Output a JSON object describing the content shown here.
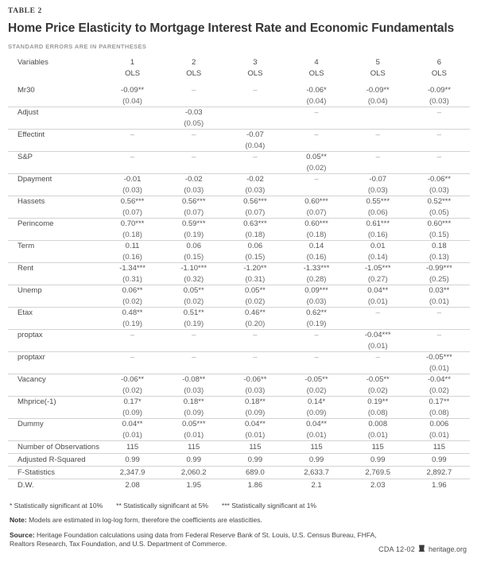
{
  "header": {
    "table_label": "TABLE 2",
    "title": "Home Price Elasticity to Mortgage Interest Rate and Economic Fundamentals",
    "subtitle": "STANDARD ERRORS ARE IN PARENTHESES"
  },
  "table": {
    "variables_header": "Variables",
    "columns": [
      {
        "number": "1",
        "method": "OLS"
      },
      {
        "number": "2",
        "method": "OLS"
      },
      {
        "number": "3",
        "method": "OLS"
      },
      {
        "number": "4",
        "method": "OLS"
      },
      {
        "number": "5",
        "method": "OLS"
      },
      {
        "number": "6",
        "method": "OLS"
      }
    ],
    "rows": [
      {
        "label": "Mr30",
        "cells": [
          {
            "v": "-0.09**",
            "se": "(0.04)"
          },
          {
            "v": "–",
            "se": ""
          },
          {
            "v": "–",
            "se": ""
          },
          {
            "v": "-0.06*",
            "se": "(0.04)"
          },
          {
            "v": "-0.09**",
            "se": "(0.04)"
          },
          {
            "v": "-0.09**",
            "se": "(0.03)"
          }
        ]
      },
      {
        "label": "Adjust",
        "cells": [
          {
            "v": "",
            "se": ""
          },
          {
            "v": "-0.03",
            "se": "(0.05)"
          },
          {
            "v": "",
            "se": ""
          },
          {
            "v": "–",
            "se": ""
          },
          {
            "v": "",
            "se": ""
          },
          {
            "v": "–",
            "se": ""
          }
        ]
      },
      {
        "label": "Effectint",
        "cells": [
          {
            "v": "–",
            "se": ""
          },
          {
            "v": "–",
            "se": ""
          },
          {
            "v": "-0.07",
            "se": "(0.04)"
          },
          {
            "v": "–",
            "se": ""
          },
          {
            "v": "–",
            "se": ""
          },
          {
            "v": "–",
            "se": ""
          }
        ]
      },
      {
        "label": "S&P",
        "cells": [
          {
            "v": "–",
            "se": ""
          },
          {
            "v": "–",
            "se": ""
          },
          {
            "v": "–",
            "se": ""
          },
          {
            "v": "0.05**",
            "se": "(0.02)"
          },
          {
            "v": "–",
            "se": ""
          },
          {
            "v": "–",
            "se": ""
          }
        ]
      },
      {
        "label": "Dpayment",
        "cells": [
          {
            "v": "-0.01",
            "se": "(0.03)"
          },
          {
            "v": "-0.02",
            "se": "(0.03)"
          },
          {
            "v": "-0.02",
            "se": "(0.03)"
          },
          {
            "v": "–",
            "se": ""
          },
          {
            "v": "-0.07",
            "se": "(0.03)"
          },
          {
            "v": "-0.06**",
            "se": "(0.03)"
          }
        ]
      },
      {
        "label": "Hassets",
        "cells": [
          {
            "v": "0.56***",
            "se": "(0.07)"
          },
          {
            "v": "0.56***",
            "se": "(0.07)"
          },
          {
            "v": "0.56***",
            "se": "(0.07)"
          },
          {
            "v": "0.60***",
            "se": "(0.07)"
          },
          {
            "v": "0.55***",
            "se": "(0.06)"
          },
          {
            "v": "0.52***",
            "se": "(0.05)"
          }
        ]
      },
      {
        "label": "Perincome",
        "cells": [
          {
            "v": "0.70***",
            "se": "(0.18)"
          },
          {
            "v": "0.59***",
            "se": "(0.19)"
          },
          {
            "v": "0.63***",
            "se": "(0.18)"
          },
          {
            "v": "0.60***",
            "se": "(0.18)"
          },
          {
            "v": "0.61***",
            "se": "(0.16)"
          },
          {
            "v": "0.60***",
            "se": "(0.15)"
          }
        ]
      },
      {
        "label": "Term",
        "cells": [
          {
            "v": "0.11",
            "se": "(0.16)"
          },
          {
            "v": "0.06",
            "se": "(0.15)"
          },
          {
            "v": "0.06",
            "se": "(0.15)"
          },
          {
            "v": "0.14",
            "se": "(0.16)"
          },
          {
            "v": "0.01",
            "se": "(0.14)"
          },
          {
            "v": "0.18",
            "se": "(0.13)"
          }
        ]
      },
      {
        "label": "Rent",
        "cells": [
          {
            "v": "-1.34***",
            "se": "(0.31)"
          },
          {
            "v": "-1.10***",
            "se": "(0.32)"
          },
          {
            "v": "-1.20**",
            "se": "(0.31)"
          },
          {
            "v": "-1.33***",
            "se": "(0.28)"
          },
          {
            "v": "-1.05***",
            "se": "(0.27)"
          },
          {
            "v": "-0.99***",
            "se": "(0.25)"
          }
        ]
      },
      {
        "label": "Unemp",
        "cells": [
          {
            "v": "0.06**",
            "se": "(0.02)"
          },
          {
            "v": "0.05**",
            "se": "(0.02)"
          },
          {
            "v": "0.05**",
            "se": "(0.02)"
          },
          {
            "v": "0.09***",
            "se": "(0.03)"
          },
          {
            "v": "0.04**",
            "se": "(0.01)"
          },
          {
            "v": "0.03**",
            "se": "(0.01)"
          }
        ]
      },
      {
        "label": "Etax",
        "cells": [
          {
            "v": "0.48**",
            "se": "(0.19)"
          },
          {
            "v": "0.51**",
            "se": "(0.19)"
          },
          {
            "v": "0.46**",
            "se": "(0.20)"
          },
          {
            "v": "0.62**",
            "se": "(0.19)"
          },
          {
            "v": "–",
            "se": ""
          },
          {
            "v": "–",
            "se": ""
          }
        ]
      },
      {
        "label": "proptax",
        "cells": [
          {
            "v": "–",
            "se": ""
          },
          {
            "v": "–",
            "se": ""
          },
          {
            "v": "–",
            "se": ""
          },
          {
            "v": "–",
            "se": ""
          },
          {
            "v": "-0.04***",
            "se": "(0.01)"
          },
          {
            "v": "–",
            "se": ""
          }
        ]
      },
      {
        "label": "proptaxr",
        "cells": [
          {
            "v": "–",
            "se": ""
          },
          {
            "v": "–",
            "se": ""
          },
          {
            "v": "–",
            "se": ""
          },
          {
            "v": "–",
            "se": ""
          },
          {
            "v": "–",
            "se": ""
          },
          {
            "v": "-0.05***",
            "se": "(0.01)"
          }
        ]
      },
      {
        "label": "Vacancy",
        "cells": [
          {
            "v": "-0.06**",
            "se": "(0.02)"
          },
          {
            "v": "-0.08**",
            "se": "(0.03)"
          },
          {
            "v": "-0.06**",
            "se": "(0.03)"
          },
          {
            "v": "-0.05**",
            "se": "(0.02)"
          },
          {
            "v": "-0.05**",
            "se": "(0.02)"
          },
          {
            "v": "-0.04**",
            "se": "(0.02)"
          }
        ]
      },
      {
        "label": "Mhprice(-1)",
        "cells": [
          {
            "v": "0.17*",
            "se": "(0.09)"
          },
          {
            "v": "0.18**",
            "se": "(0.09)"
          },
          {
            "v": "0.18**",
            "se": "(0.09)"
          },
          {
            "v": "0.14*",
            "se": "(0.09)"
          },
          {
            "v": "0.19**",
            "se": "(0.08)"
          },
          {
            "v": "0.17**",
            "se": "(0.08)"
          }
        ]
      },
      {
        "label": "Dummy",
        "cells": [
          {
            "v": "0.04**",
            "se": "(0.01)"
          },
          {
            "v": "0.05***",
            "se": "(0.01)"
          },
          {
            "v": "0.04**",
            "se": "(0.01)"
          },
          {
            "v": "0.04**",
            "se": "(0.01)"
          },
          {
            "v": "0.008",
            "se": "(0.01)"
          },
          {
            "v": "0.006",
            "se": "(0.01)"
          }
        ]
      }
    ],
    "summary_rows": [
      {
        "label": "Number of Observations",
        "cells": [
          "115",
          "115",
          "115",
          "115",
          "115",
          "115"
        ]
      },
      {
        "label": "Adjusted R-Squared",
        "cells": [
          "0.99",
          "0.99",
          "0.99",
          "0.99",
          "0.99",
          "0.99"
        ]
      },
      {
        "label": "F-Statistics",
        "cells": [
          "2,347.9",
          "2,060.2",
          "689.0",
          "2,633.7",
          "2,769.5",
          "2,892.7"
        ]
      },
      {
        "label": "D.W.",
        "cells": [
          "2.08",
          "1.95",
          "1.86",
          "2.1",
          "2.03",
          "1.96"
        ]
      }
    ]
  },
  "footnotes": {
    "significance": [
      "* Statistically significant at 10%",
      "** Statistically significant at 5%",
      "*** Statistically significant at 1%"
    ],
    "note_label": "Note:",
    "note_text": " Models are estimated in log-log form, therefore the coefficients are elasticities.",
    "source_label": "Source:",
    "source_text": " Heritage Foundation calculations using data from Federal Reserve Bank of St. Louis, U.S. Census Bureau, FHFA, Realtors Research, Tax Foundation, and U.S. Department of Commerce."
  },
  "footer": {
    "doc_id": "CDA 12-02",
    "site": "heritage.org"
  },
  "colors": {
    "rule": "#d3d3d3",
    "title_text": "#373737",
    "body_text": "#555555",
    "muted_text": "#9b9b9b"
  }
}
